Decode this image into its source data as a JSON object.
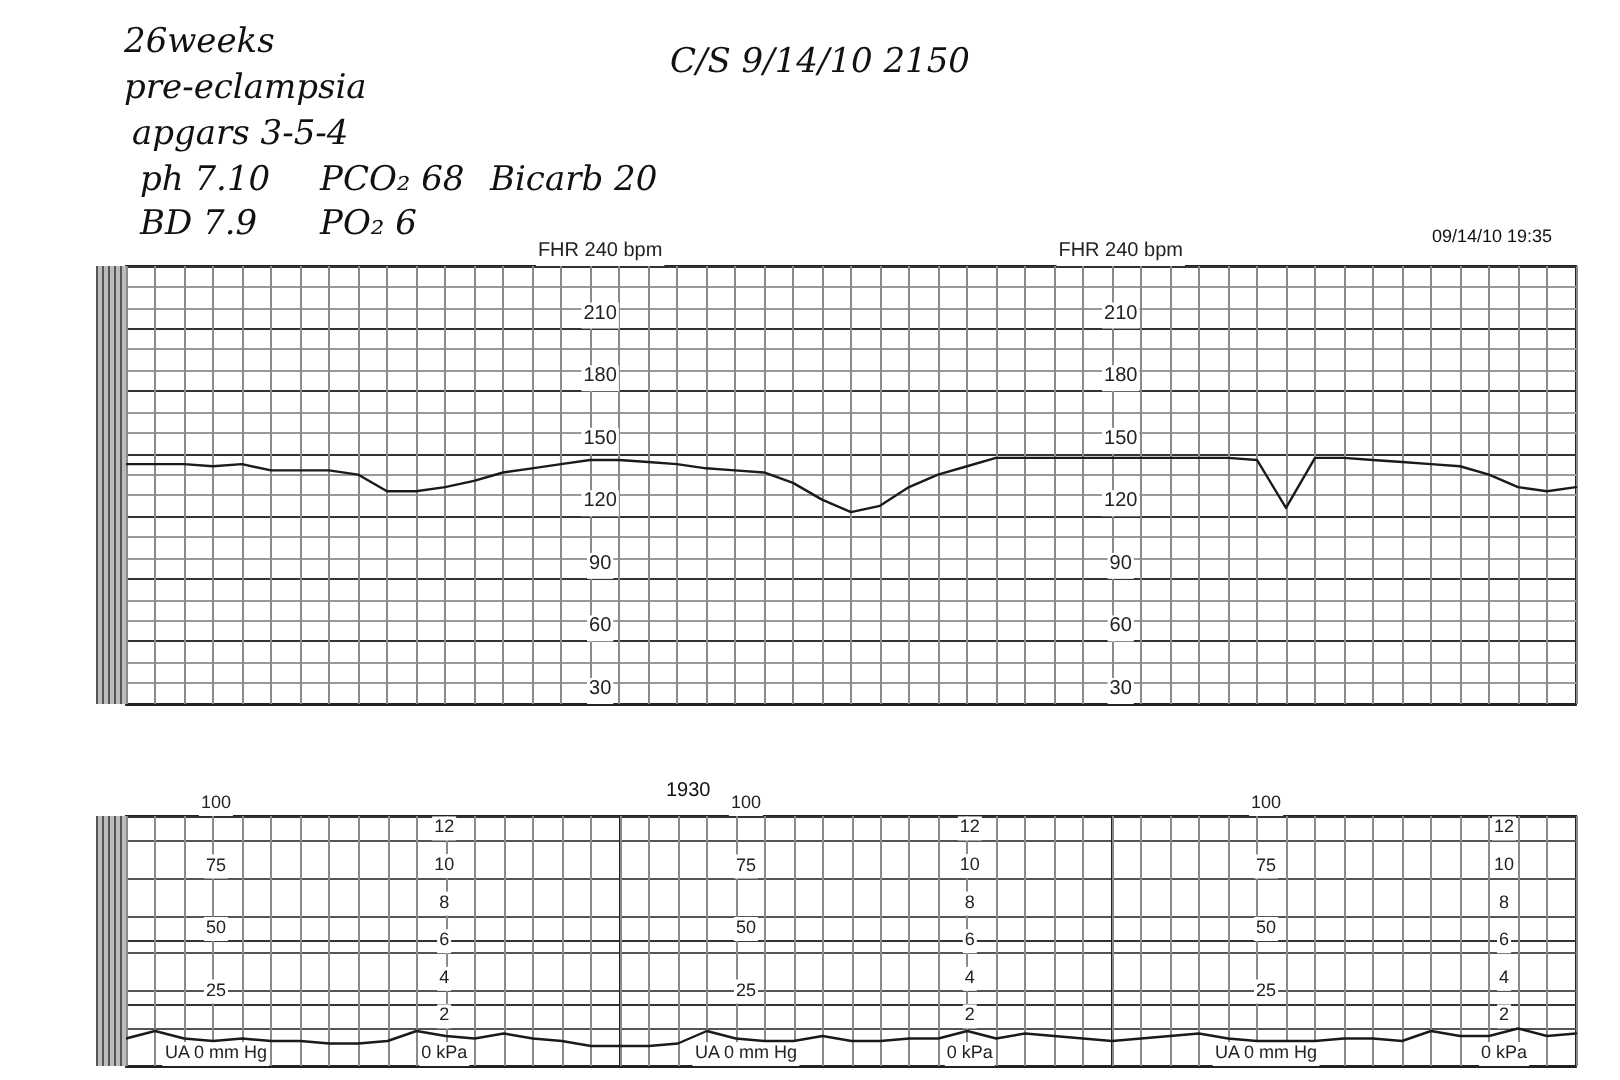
{
  "chart_data": [
    {
      "type": "line",
      "categories": [
        null,
        null,
        null,
        null,
        null,
        null,
        null,
        null,
        null,
        null,
        null,
        null,
        null,
        null,
        null,
        null,
        null,
        null,
        null,
        null,
        null,
        null,
        null,
        null,
        null,
        null,
        null,
        null,
        null,
        null,
        null,
        null,
        null,
        null,
        null,
        null,
        null,
        null,
        null,
        null,
        null,
        null,
        null,
        null,
        null,
        null,
        null,
        null,
        null,
        null,
        null
      ],
      "values": [
        145,
        145,
        145,
        144,
        145,
        142,
        142,
        142,
        140,
        132,
        132,
        134,
        137,
        141,
        143,
        145,
        147,
        147,
        146,
        145,
        143,
        142,
        141,
        136,
        128,
        122,
        125,
        134,
        140,
        144,
        148,
        148,
        148,
        148,
        148,
        148,
        148,
        148,
        148,
        147,
        124,
        148,
        148,
        147,
        146,
        145,
        144,
        140,
        134,
        132,
        134
      ],
      "color": "#1a1a1a",
      "marker": "none",
      "ylim": [
        30,
        240
      ],
      "yticks": [
        30,
        {
          "value": 40,
          "label": null
        },
        {
          "value": 50,
          "label": null
        },
        60,
        {
          "value": 70,
          "label": null
        },
        {
          "value": 80,
          "label": null
        },
        90,
        {
          "value": 100,
          "label": null
        },
        {
          "value": 110,
          "label": null
        },
        120,
        {
          "value": 130,
          "label": null
        },
        {
          "value": 140,
          "label": null
        },
        150,
        {
          "value": 160,
          "label": null
        },
        {
          "value": 170,
          "label": null
        },
        180,
        {
          "value": 190,
          "label": null
        },
        {
          "value": 200,
          "label": null
        },
        210,
        {
          "value": 220,
          "label": null
        },
        {
          "value": 230,
          "label": null
        },
        {
          "value": 240,
          "label": "FHR 240 bpm"
        }
      ],
      "y2lim": [
        30,
        240
      ],
      "y2ticks": [
        30,
        {
          "value": 40,
          "label": null
        },
        {
          "value": 50,
          "label": null
        },
        60,
        {
          "value": 70,
          "label": null
        },
        {
          "value": 80,
          "label": null
        },
        90,
        {
          "value": 100,
          "label": null
        },
        {
          "value": 110,
          "label": null
        },
        120,
        {
          "value": 130,
          "label": null
        },
        {
          "value": 140,
          "label": null
        },
        150,
        {
          "value": 160,
          "label": null
        },
        {
          "value": 170,
          "label": null
        },
        180,
        {
          "value": 190,
          "label": null
        },
        {
          "value": 200,
          "label": null
        },
        210,
        {
          "value": 220,
          "label": null
        },
        {
          "value": 230,
          "label": null
        },
        {
          "value": 240,
          "label": "FHR 240 bpm"
        }
      ],
      "grid": true,
      "tick_labels": "y",
      "annotations": [
        "26weeks",
        "pre-eclampsia",
        "apgars 3-5-4",
        "ph 7.10",
        "PCO₂ 68",
        "Bicarb 20",
        "BD 7.9",
        "PO₂ 6",
        "C/S 9/14/10 2150",
        "09/14/10 19:35"
      ]
    },
    {
      "type": "line",
      "categories": [
        null,
        null,
        null,
        null,
        null,
        null,
        null,
        null,
        null,
        null,
        null,
        null,
        null,
        null,
        null,
        null,
        null,
        null
      ],
      "values": [
        11,
        14,
        11,
        10,
        11,
        10,
        10,
        9,
        9,
        10,
        14,
        12,
        11,
        13,
        11,
        10,
        8,
        8
      ],
      "color": "#1a1a1a",
      "marker": "none",
      "ylim": [
        0,
        100
      ],
      "yticks": [
        {
          "value": 0,
          "label": "UA 0 mm Hg"
        },
        25,
        50,
        75,
        100
      ],
      "y2lim": [
        0,
        13.3
      ],
      "y2ticks": [
        {
          "value": 0,
          "label": "0 kPa"
        },
        2,
        4,
        6,
        8,
        10,
        12
      ],
      "grid": true,
      "tick_labels": "y"
    },
    {
      "type": "line",
      "categories": [
        null,
        null,
        null,
        null,
        null,
        null,
        null,
        null,
        null,
        null,
        null,
        null,
        null,
        null,
        null,
        null,
        null,
        null
      ],
      "values": [
        8,
        8,
        9,
        14,
        11,
        10,
        10,
        12,
        10,
        10,
        11,
        11,
        14,
        11,
        13,
        12,
        11,
        10
      ],
      "color": "#1a1a1a",
      "marker": "none",
      "ylim": [
        0,
        100
      ],
      "yticks": [
        {
          "value": 0,
          "label": "UA 0 mm Hg"
        },
        25,
        50,
        75,
        100
      ],
      "y2lim": [
        0,
        13.3
      ],
      "y2ticks": [
        {
          "value": 0,
          "label": "0 kPa"
        },
        2,
        4,
        6,
        8,
        10,
        12
      ],
      "grid": true,
      "tick_labels": "y",
      "annotations": [
        "1930"
      ]
    },
    {
      "type": "line",
      "categories": [
        null,
        null,
        null,
        null,
        null,
        null,
        null,
        null,
        null,
        null,
        null,
        null,
        null,
        null,
        null,
        null,
        null
      ],
      "values": [
        10,
        11,
        12,
        13,
        11,
        10,
        10,
        10,
        11,
        11,
        10,
        14,
        12,
        12,
        15,
        12,
        13
      ],
      "color": "#1a1a1a",
      "marker": "none",
      "ylim": [
        0,
        100
      ],
      "yticks": [
        {
          "value": 0,
          "label": "UA 0 mm Hg"
        },
        25,
        50,
        75,
        100
      ],
      "y2lim": [
        0,
        13.3
      ],
      "y2ticks": [
        {
          "value": 0,
          "label": "0 kPa"
        },
        2,
        4,
        6,
        8,
        10,
        12
      ],
      "grid": true,
      "tick_labels": "y"
    }
  ]
}
